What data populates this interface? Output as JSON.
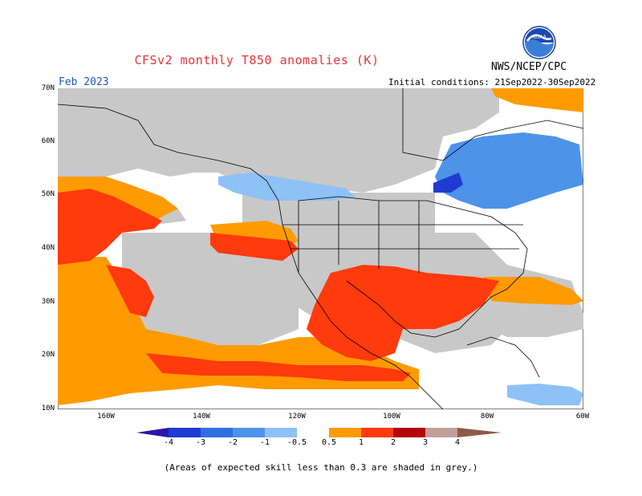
{
  "title": "CFSv2 monthly T850 anomalies (K)",
  "org": "NWS/NCEP/CPC",
  "month": "Feb 2023",
  "initial_conditions": "Initial conditions: 21Sep2022-30Sep2022",
  "lat_labels": [
    "70N",
    "60N",
    "50N",
    "40N",
    "30N",
    "20N",
    "10N"
  ],
  "lon_labels": [
    "160W",
    "140W",
    "120W",
    "100W",
    "80W",
    "60W"
  ],
  "colorbar": {
    "labels": [
      "-4",
      "-3",
      "-2",
      "-1",
      "-0.5",
      "0.5",
      "1",
      "2",
      "3",
      "4"
    ],
    "colors": [
      "#2a16a8",
      "#1e3ccf",
      "#2f6fe0",
      "#4d93ea",
      "#8ec1f5",
      "#ffffff",
      "#ff9b00",
      "#ff3a0c",
      "#b3070c",
      "#c0a098"
    ],
    "neutral_color": "#ffffff"
  },
  "skill_mask_color": "#c8c8c8",
  "note": "(Areas of expected skill less than 0.3 are shaded in grey.)"
}
